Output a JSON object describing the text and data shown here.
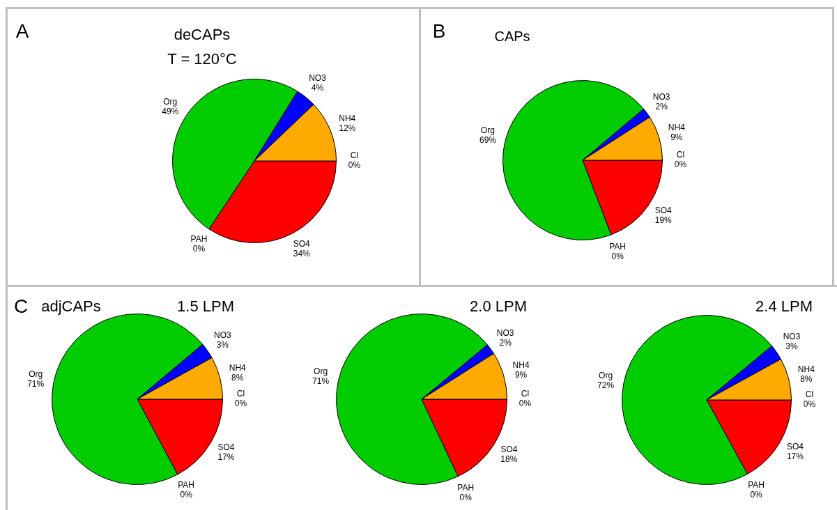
{
  "chart_data": [
    {
      "type": "pie",
      "title": "deCAPs",
      "subtitle": "T = 120°C",
      "annotations": [
        "A"
      ],
      "categories": [
        "Cl",
        "SO4",
        "PAH",
        "Org",
        "NO3",
        "NH4"
      ],
      "values": [
        0,
        34,
        0,
        49,
        4,
        12
      ],
      "value_labels": [
        "0%",
        "34%",
        "0%",
        "49%",
        "4%",
        "12%"
      ],
      "colors": [
        "#ffff00",
        "#ff0000",
        "#800080",
        "#00cc00",
        "#0000ff",
        "#ffaa00"
      ]
    },
    {
      "type": "pie",
      "title": "CAPs",
      "annotations": [
        "B"
      ],
      "categories": [
        "Cl",
        "SO4",
        "PAH",
        "Org",
        "NO3",
        "NH4"
      ],
      "values": [
        0,
        19,
        0,
        69,
        2,
        9
      ],
      "value_labels": [
        "0%",
        "19%",
        "0%",
        "69%",
        "2%",
        "9%"
      ],
      "colors": [
        "#ffff00",
        "#ff0000",
        "#800080",
        "#00cc00",
        "#0000ff",
        "#ffaa00"
      ]
    },
    {
      "type": "pie",
      "title": "1.5 LPM",
      "annotations": [
        "C",
        "adjCAPs"
      ],
      "categories": [
        "Cl",
        "SO4",
        "PAH",
        "Org",
        "NO3",
        "NH4"
      ],
      "values": [
        0,
        17,
        0,
        71,
        3,
        8
      ],
      "value_labels": [
        "0%",
        "17%",
        "0%",
        "71%",
        "3%",
        "8%"
      ],
      "colors": [
        "#ffff00",
        "#ff0000",
        "#800080",
        "#00cc00",
        "#0000ff",
        "#ffaa00"
      ]
    },
    {
      "type": "pie",
      "title": "2.0 LPM",
      "categories": [
        "Cl",
        "SO4",
        "PAH",
        "Org",
        "NO3",
        "NH4"
      ],
      "values": [
        0,
        18,
        0,
        71,
        2,
        9
      ],
      "value_labels": [
        "0%",
        "18%",
        "0%",
        "71%",
        "2%",
        "9%"
      ],
      "colors": [
        "#ffff00",
        "#ff0000",
        "#800080",
        "#00cc00",
        "#0000ff",
        "#ffaa00"
      ]
    },
    {
      "type": "pie",
      "title": "2.4 LPM",
      "categories": [
        "Cl",
        "SO4",
        "PAH",
        "Org",
        "NO3",
        "NH4"
      ],
      "values": [
        0,
        17,
        0,
        72,
        3,
        8
      ],
      "value_labels": [
        "0%",
        "17%",
        "0%",
        "72%",
        "3%",
        "8%"
      ],
      "colors": [
        "#ffff00",
        "#ff0000",
        "#800080",
        "#00cc00",
        "#0000ff",
        "#ffaa00"
      ]
    }
  ]
}
